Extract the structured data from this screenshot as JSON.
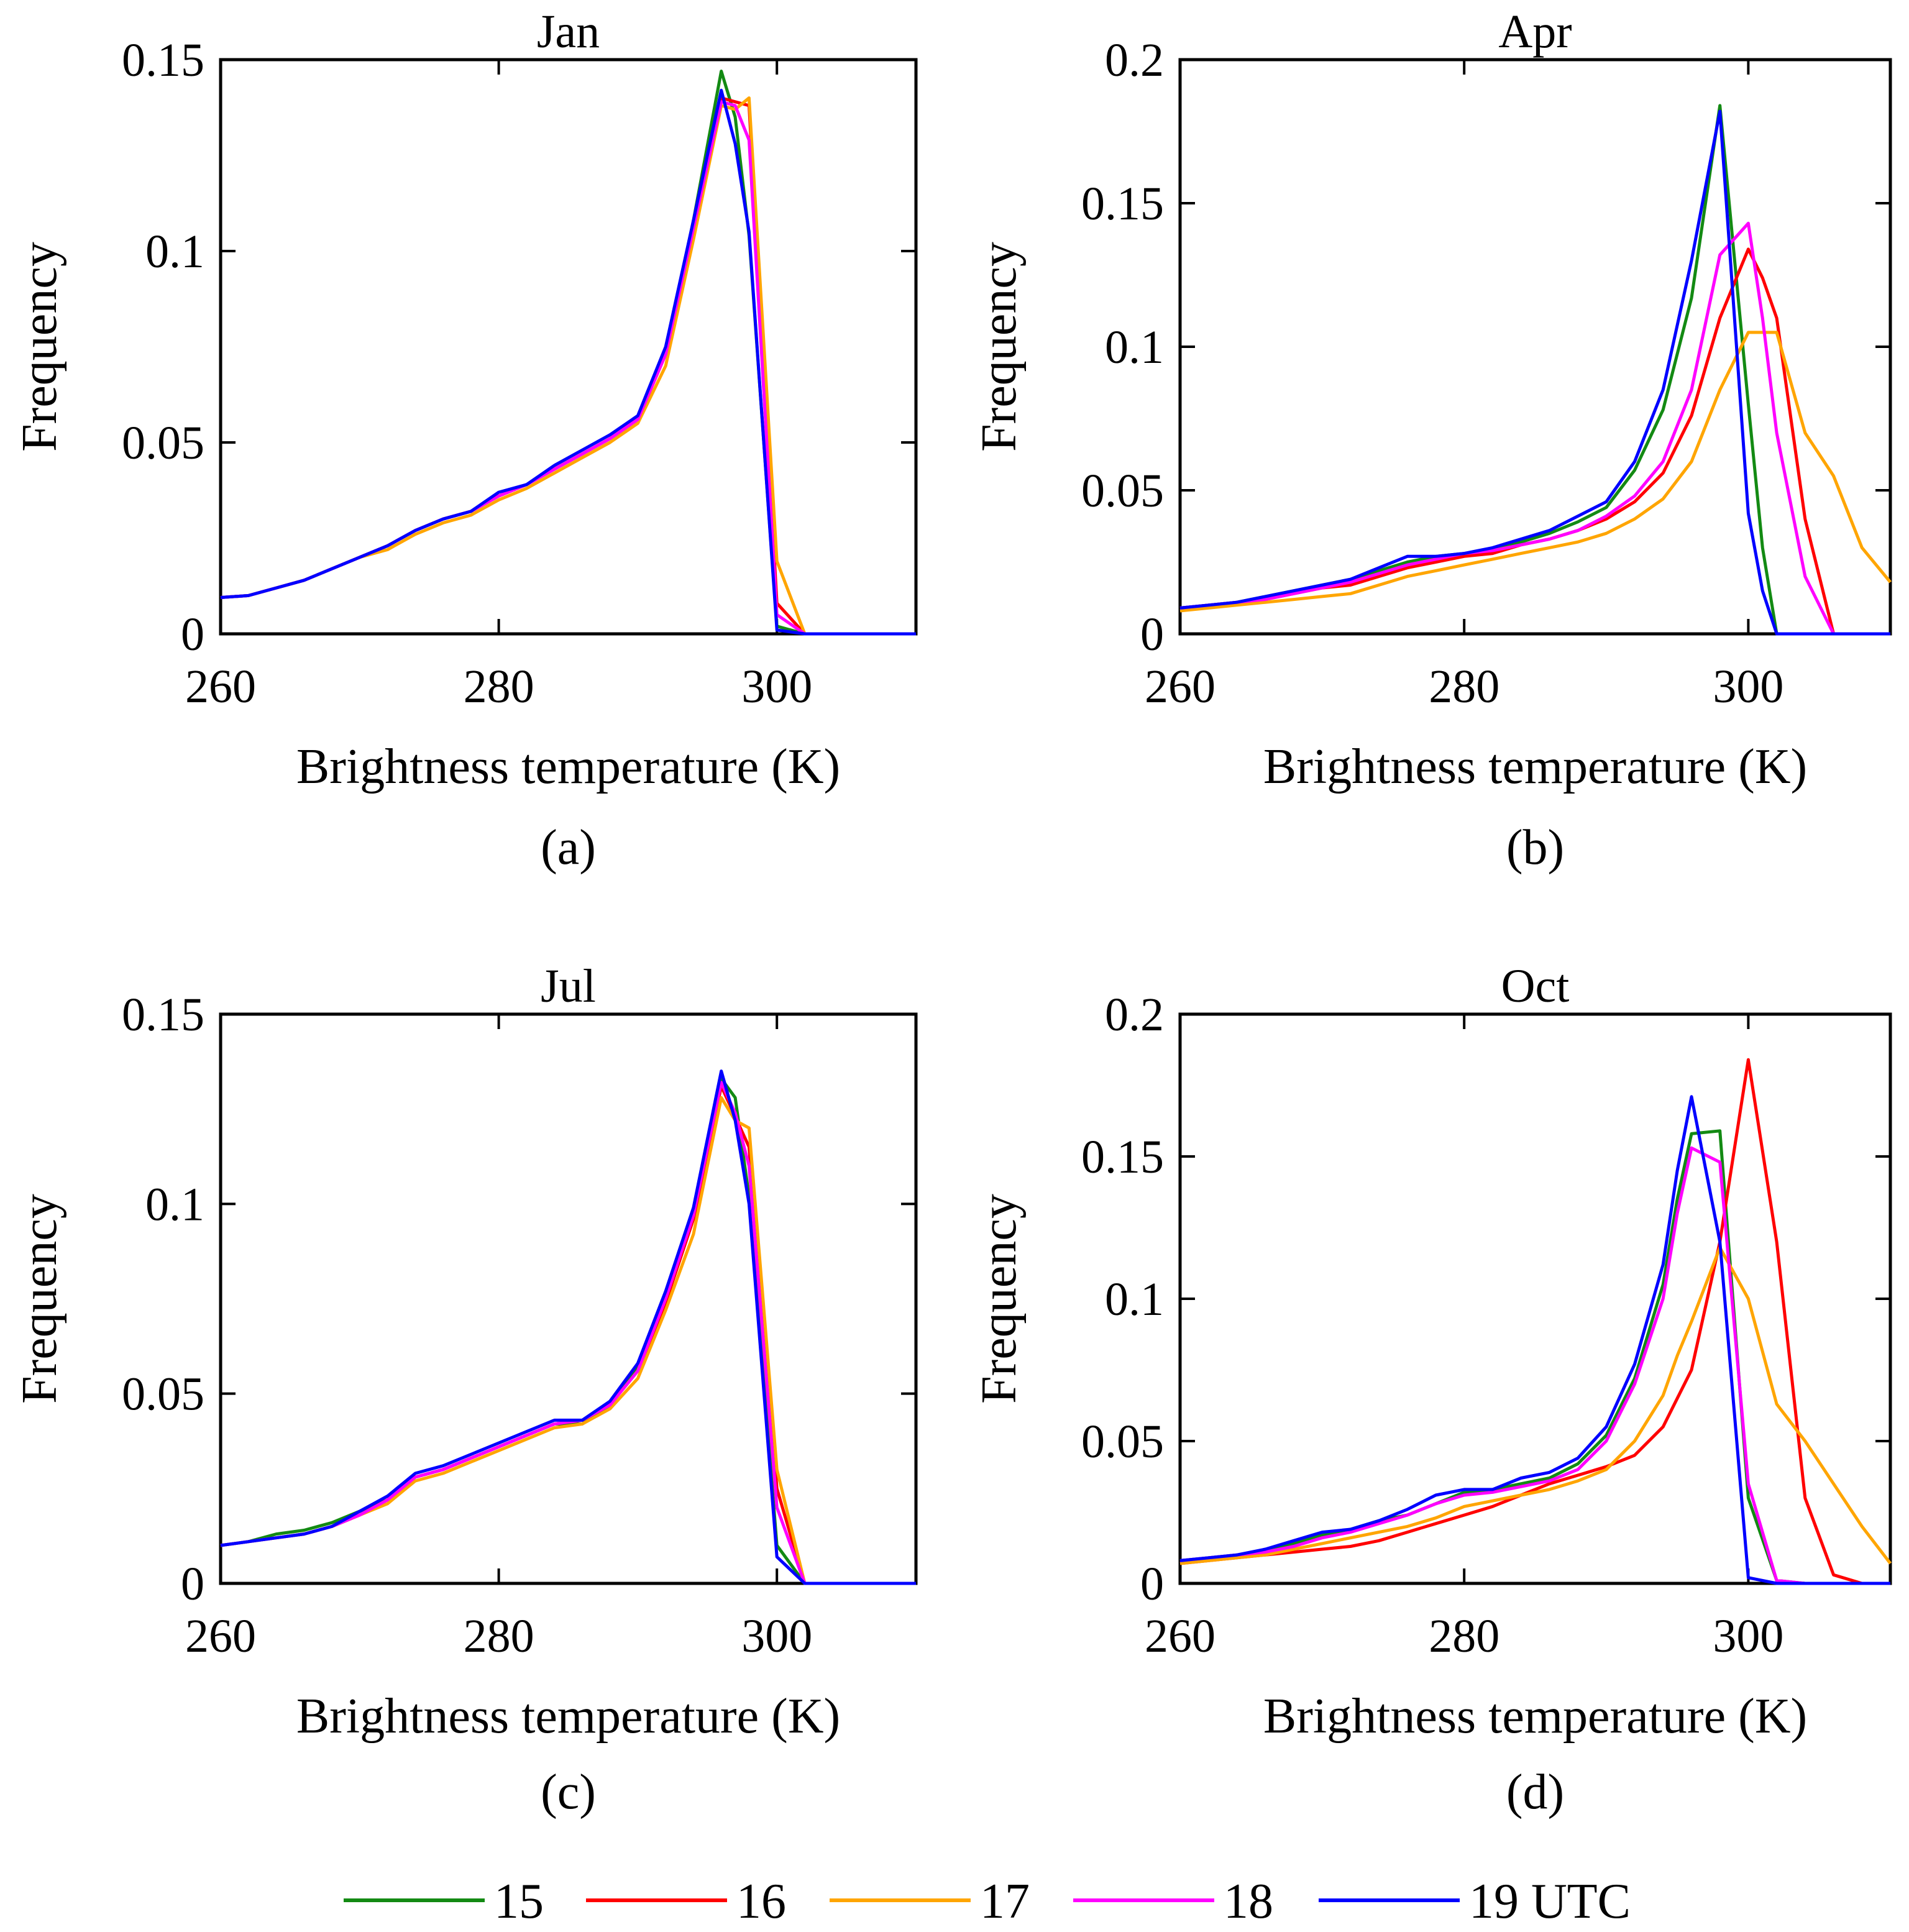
{
  "legend": {
    "items": [
      {
        "label": "15",
        "color": "#138a13"
      },
      {
        "label": "16",
        "color": "#ff0000"
      },
      {
        "label": "17",
        "color": "#ffa500"
      },
      {
        "label": "18",
        "color": "#ff00ff"
      },
      {
        "label": "19 UTC",
        "color": "#0000ff"
      }
    ]
  },
  "chart_data": [
    {
      "type": "line",
      "title": "Jan",
      "panel_label": "(a)",
      "xlabel": "Brightness temperature (K)",
      "ylabel": "Frequency",
      "xlim": [
        260,
        310
      ],
      "ylim": [
        0,
        0.15
      ],
      "xticks": [
        {
          "value": 260,
          "label": "260"
        },
        {
          "value": 280,
          "label": "280"
        },
        {
          "value": 300,
          "label": "300"
        }
      ],
      "yticks": [
        {
          "value": 0,
          "label": "0"
        },
        {
          "value": 0.05,
          "label": "0.05"
        },
        {
          "value": 0.1,
          "label": "0.1"
        },
        {
          "value": 0.15,
          "label": "0.15"
        }
      ],
      "x": [
        260,
        262,
        264,
        266,
        268,
        270,
        272,
        274,
        276,
        278,
        280,
        282,
        284,
        286,
        288,
        290,
        292,
        294,
        296,
        297,
        298,
        300,
        302,
        304,
        306,
        308,
        310
      ],
      "series": [
        {
          "name": "15",
          "color": "#138a13",
          "values": [
            0.0095,
            0.01,
            0.012,
            0.014,
            0.017,
            0.02,
            0.023,
            0.027,
            0.03,
            0.032,
            0.036,
            0.039,
            0.043,
            0.047,
            0.051,
            0.056,
            0.074,
            0.108,
            0.147,
            0.135,
            0.104,
            0.002,
            0.0,
            0.0,
            0.0,
            0.0,
            0.0
          ]
        },
        {
          "name": "16",
          "color": "#ff0000",
          "values": [
            0.0095,
            0.01,
            0.012,
            0.014,
            0.017,
            0.02,
            0.023,
            0.027,
            0.03,
            0.032,
            0.036,
            0.039,
            0.043,
            0.047,
            0.051,
            0.056,
            0.073,
            0.106,
            0.14,
            0.139,
            0.138,
            0.008,
            0.0,
            0.0,
            0.0,
            0.0,
            0.0
          ]
        },
        {
          "name": "17",
          "color": "#ffa500",
          "values": [
            0.0095,
            0.01,
            0.012,
            0.014,
            0.017,
            0.02,
            0.022,
            0.026,
            0.029,
            0.031,
            0.035,
            0.038,
            0.042,
            0.046,
            0.05,
            0.055,
            0.07,
            0.103,
            0.138,
            0.137,
            0.14,
            0.019,
            0.0,
            0.0,
            0.0,
            0.0,
            0.0
          ]
        },
        {
          "name": "18",
          "color": "#ff00ff",
          "values": [
            0.0095,
            0.01,
            0.012,
            0.014,
            0.017,
            0.02,
            0.023,
            0.027,
            0.03,
            0.032,
            0.036,
            0.039,
            0.043,
            0.047,
            0.051,
            0.056,
            0.073,
            0.106,
            0.139,
            0.138,
            0.129,
            0.005,
            0.0,
            0.0,
            0.0,
            0.0,
            0.0
          ]
        },
        {
          "name": "19 UTC",
          "color": "#0000ff",
          "values": [
            0.0095,
            0.01,
            0.012,
            0.014,
            0.017,
            0.02,
            0.023,
            0.027,
            0.03,
            0.032,
            0.037,
            0.039,
            0.044,
            0.048,
            0.052,
            0.057,
            0.075,
            0.108,
            0.142,
            0.128,
            0.105,
            0.001,
            0.0,
            0.0,
            0.0,
            0.0,
            0.0
          ]
        }
      ]
    },
    {
      "type": "line",
      "title": "Apr",
      "panel_label": "(b)",
      "xlabel": "Brightness temperature (K)",
      "ylabel": "Frequency",
      "xlim": [
        260,
        310
      ],
      "ylim": [
        0,
        0.2
      ],
      "xticks": [
        {
          "value": 260,
          "label": "260"
        },
        {
          "value": 280,
          "label": "280"
        },
        {
          "value": 300,
          "label": "300"
        }
      ],
      "yticks": [
        {
          "value": 0,
          "label": "0"
        },
        {
          "value": 0.05,
          "label": "0.05"
        },
        {
          "value": 0.1,
          "label": "0.1"
        },
        {
          "value": 0.15,
          "label": "0.15"
        },
        {
          "value": 0.2,
          "label": "0.2"
        }
      ],
      "x": [
        260,
        262,
        264,
        266,
        268,
        270,
        272,
        274,
        276,
        278,
        280,
        282,
        284,
        286,
        288,
        290,
        292,
        294,
        296,
        298,
        300,
        301,
        302,
        304,
        306,
        308,
        310
      ],
      "series": [
        {
          "name": "15",
          "color": "#138a13",
          "values": [
            0.009,
            0.01,
            0.011,
            0.013,
            0.015,
            0.017,
            0.019,
            0.022,
            0.025,
            0.027,
            0.028,
            0.029,
            0.032,
            0.035,
            0.039,
            0.044,
            0.057,
            0.078,
            0.117,
            0.184,
            0.08,
            0.03,
            0.0,
            0.0,
            0.0,
            0.0,
            0.0
          ]
        },
        {
          "name": "16",
          "color": "#ff0000",
          "values": [
            0.009,
            0.01,
            0.011,
            0.012,
            0.014,
            0.016,
            0.017,
            0.02,
            0.023,
            0.025,
            0.027,
            0.028,
            0.031,
            0.033,
            0.036,
            0.04,
            0.046,
            0.056,
            0.076,
            0.11,
            0.134,
            0.124,
            0.11,
            0.04,
            0.0,
            0.0,
            0.0
          ]
        },
        {
          "name": "17",
          "color": "#ffa500",
          "values": [
            0.008,
            0.009,
            0.01,
            0.011,
            0.012,
            0.013,
            0.014,
            0.017,
            0.02,
            0.022,
            0.024,
            0.026,
            0.028,
            0.03,
            0.032,
            0.035,
            0.04,
            0.047,
            0.06,
            0.085,
            0.105,
            0.105,
            0.105,
            0.07,
            0.055,
            0.03,
            0.018
          ]
        },
        {
          "name": "18",
          "color": "#ff00ff",
          "values": [
            0.009,
            0.01,
            0.011,
            0.012,
            0.014,
            0.016,
            0.018,
            0.021,
            0.024,
            0.026,
            0.028,
            0.029,
            0.031,
            0.033,
            0.036,
            0.041,
            0.048,
            0.06,
            0.085,
            0.132,
            0.143,
            0.11,
            0.07,
            0.02,
            0.0,
            0.0,
            0.0
          ]
        },
        {
          "name": "19 UTC",
          "color": "#0000ff",
          "values": [
            0.009,
            0.01,
            0.011,
            0.013,
            0.015,
            0.017,
            0.019,
            0.023,
            0.027,
            0.027,
            0.028,
            0.03,
            0.033,
            0.036,
            0.041,
            0.046,
            0.06,
            0.085,
            0.13,
            0.182,
            0.042,
            0.015,
            0.0,
            0.0,
            0.0,
            0.0,
            0.0
          ]
        }
      ]
    },
    {
      "type": "line",
      "title": "Jul",
      "panel_label": "(c)",
      "xlabel": "Brightness temperature (K)",
      "ylabel": "Frequency",
      "xlim": [
        260,
        310
      ],
      "ylim": [
        0,
        0.15
      ],
      "xticks": [
        {
          "value": 260,
          "label": "260"
        },
        {
          "value": 280,
          "label": "280"
        },
        {
          "value": 300,
          "label": "300"
        }
      ],
      "yticks": [
        {
          "value": 0,
          "label": "0"
        },
        {
          "value": 0.05,
          "label": "0.05"
        },
        {
          "value": 0.1,
          "label": "0.1"
        },
        {
          "value": 0.15,
          "label": "0.15"
        }
      ],
      "x": [
        260,
        262,
        264,
        266,
        268,
        270,
        272,
        274,
        276,
        278,
        280,
        282,
        284,
        286,
        288,
        290,
        292,
        294,
        296,
        297,
        298,
        300,
        302,
        304,
        306,
        308,
        310
      ],
      "series": [
        {
          "name": "15",
          "color": "#138a13",
          "values": [
            0.01,
            0.011,
            0.013,
            0.014,
            0.016,
            0.019,
            0.022,
            0.028,
            0.03,
            0.033,
            0.036,
            0.039,
            0.042,
            0.042,
            0.047,
            0.057,
            0.076,
            0.098,
            0.133,
            0.128,
            0.102,
            0.01,
            0.0,
            0.0,
            0.0,
            0.0,
            0.0
          ]
        },
        {
          "name": "16",
          "color": "#ff0000",
          "values": [
            0.01,
            0.011,
            0.012,
            0.013,
            0.015,
            0.018,
            0.022,
            0.028,
            0.03,
            0.033,
            0.036,
            0.039,
            0.042,
            0.043,
            0.047,
            0.056,
            0.074,
            0.096,
            0.131,
            0.123,
            0.115,
            0.025,
            0.0,
            0.0,
            0.0,
            0.0,
            0.0
          ]
        },
        {
          "name": "17",
          "color": "#ffa500",
          "values": [
            0.01,
            0.011,
            0.012,
            0.013,
            0.015,
            0.018,
            0.021,
            0.027,
            0.029,
            0.032,
            0.035,
            0.038,
            0.041,
            0.042,
            0.046,
            0.054,
            0.072,
            0.092,
            0.128,
            0.122,
            0.12,
            0.03,
            0.0,
            0.0,
            0.0,
            0.0,
            0.0
          ]
        },
        {
          "name": "18",
          "color": "#ff00ff",
          "values": [
            0.01,
            0.011,
            0.012,
            0.013,
            0.015,
            0.018,
            0.022,
            0.028,
            0.03,
            0.033,
            0.036,
            0.039,
            0.042,
            0.043,
            0.047,
            0.056,
            0.075,
            0.097,
            0.132,
            0.124,
            0.11,
            0.02,
            0.0,
            0.0,
            0.0,
            0.0,
            0.0
          ]
        },
        {
          "name": "19 UTC",
          "color": "#0000ff",
          "values": [
            0.01,
            0.011,
            0.012,
            0.013,
            0.015,
            0.019,
            0.023,
            0.029,
            0.031,
            0.034,
            0.037,
            0.04,
            0.043,
            0.043,
            0.048,
            0.058,
            0.077,
            0.099,
            0.135,
            0.122,
            0.1,
            0.007,
            0.0,
            0.0,
            0.0,
            0.0,
            0.0
          ]
        }
      ]
    },
    {
      "type": "line",
      "title": "Oct",
      "panel_label": "(d)",
      "xlabel": "Brightness temperature (K)",
      "ylabel": "Frequency",
      "xlim": [
        260,
        310
      ],
      "ylim": [
        0,
        0.2
      ],
      "xticks": [
        {
          "value": 260,
          "label": "260"
        },
        {
          "value": 280,
          "label": "280"
        },
        {
          "value": 300,
          "label": "300"
        }
      ],
      "yticks": [
        {
          "value": 0,
          "label": "0"
        },
        {
          "value": 0.05,
          "label": "0.05"
        },
        {
          "value": 0.1,
          "label": "0.1"
        },
        {
          "value": 0.15,
          "label": "0.15"
        },
        {
          "value": 0.2,
          "label": "0.2"
        }
      ],
      "x": [
        260,
        262,
        264,
        266,
        268,
        270,
        272,
        274,
        276,
        278,
        280,
        282,
        284,
        286,
        288,
        290,
        292,
        294,
        295,
        296,
        298,
        300,
        302,
        304,
        306,
        308,
        310
      ],
      "series": [
        {
          "name": "15",
          "color": "#138a13",
          "values": [
            0.008,
            0.009,
            0.01,
            0.011,
            0.014,
            0.017,
            0.019,
            0.022,
            0.024,
            0.028,
            0.032,
            0.033,
            0.035,
            0.037,
            0.042,
            0.052,
            0.072,
            0.105,
            0.135,
            0.158,
            0.159,
            0.03,
            0.001,
            0.0,
            0.0,
            0.0,
            0.0
          ]
        },
        {
          "name": "16",
          "color": "#ff0000",
          "values": [
            0.007,
            0.008,
            0.009,
            0.01,
            0.011,
            0.012,
            0.013,
            0.015,
            0.018,
            0.021,
            0.024,
            0.027,
            0.031,
            0.035,
            0.038,
            0.041,
            0.045,
            0.055,
            0.065,
            0.075,
            0.12,
            0.184,
            0.12,
            0.03,
            0.003,
            0.0,
            0.0
          ]
        },
        {
          "name": "17",
          "color": "#ffa500",
          "values": [
            0.007,
            0.008,
            0.009,
            0.01,
            0.012,
            0.014,
            0.016,
            0.018,
            0.02,
            0.023,
            0.027,
            0.029,
            0.031,
            0.033,
            0.036,
            0.04,
            0.05,
            0.066,
            0.08,
            0.092,
            0.118,
            0.1,
            0.063,
            0.05,
            0.035,
            0.02,
            0.007
          ]
        },
        {
          "name": "18",
          "color": "#ff00ff",
          "values": [
            0.008,
            0.009,
            0.01,
            0.011,
            0.013,
            0.016,
            0.018,
            0.021,
            0.024,
            0.028,
            0.031,
            0.032,
            0.034,
            0.036,
            0.04,
            0.05,
            0.07,
            0.1,
            0.13,
            0.153,
            0.148,
            0.035,
            0.001,
            0.0,
            0.0,
            0.0,
            0.0
          ]
        },
        {
          "name": "19 UTC",
          "color": "#0000ff",
          "values": [
            0.008,
            0.009,
            0.01,
            0.012,
            0.015,
            0.018,
            0.019,
            0.022,
            0.026,
            0.031,
            0.033,
            0.033,
            0.037,
            0.039,
            0.044,
            0.055,
            0.077,
            0.112,
            0.145,
            0.171,
            0.12,
            0.002,
            0.0,
            0.0,
            0.0,
            0.0,
            0.0
          ]
        }
      ]
    }
  ]
}
